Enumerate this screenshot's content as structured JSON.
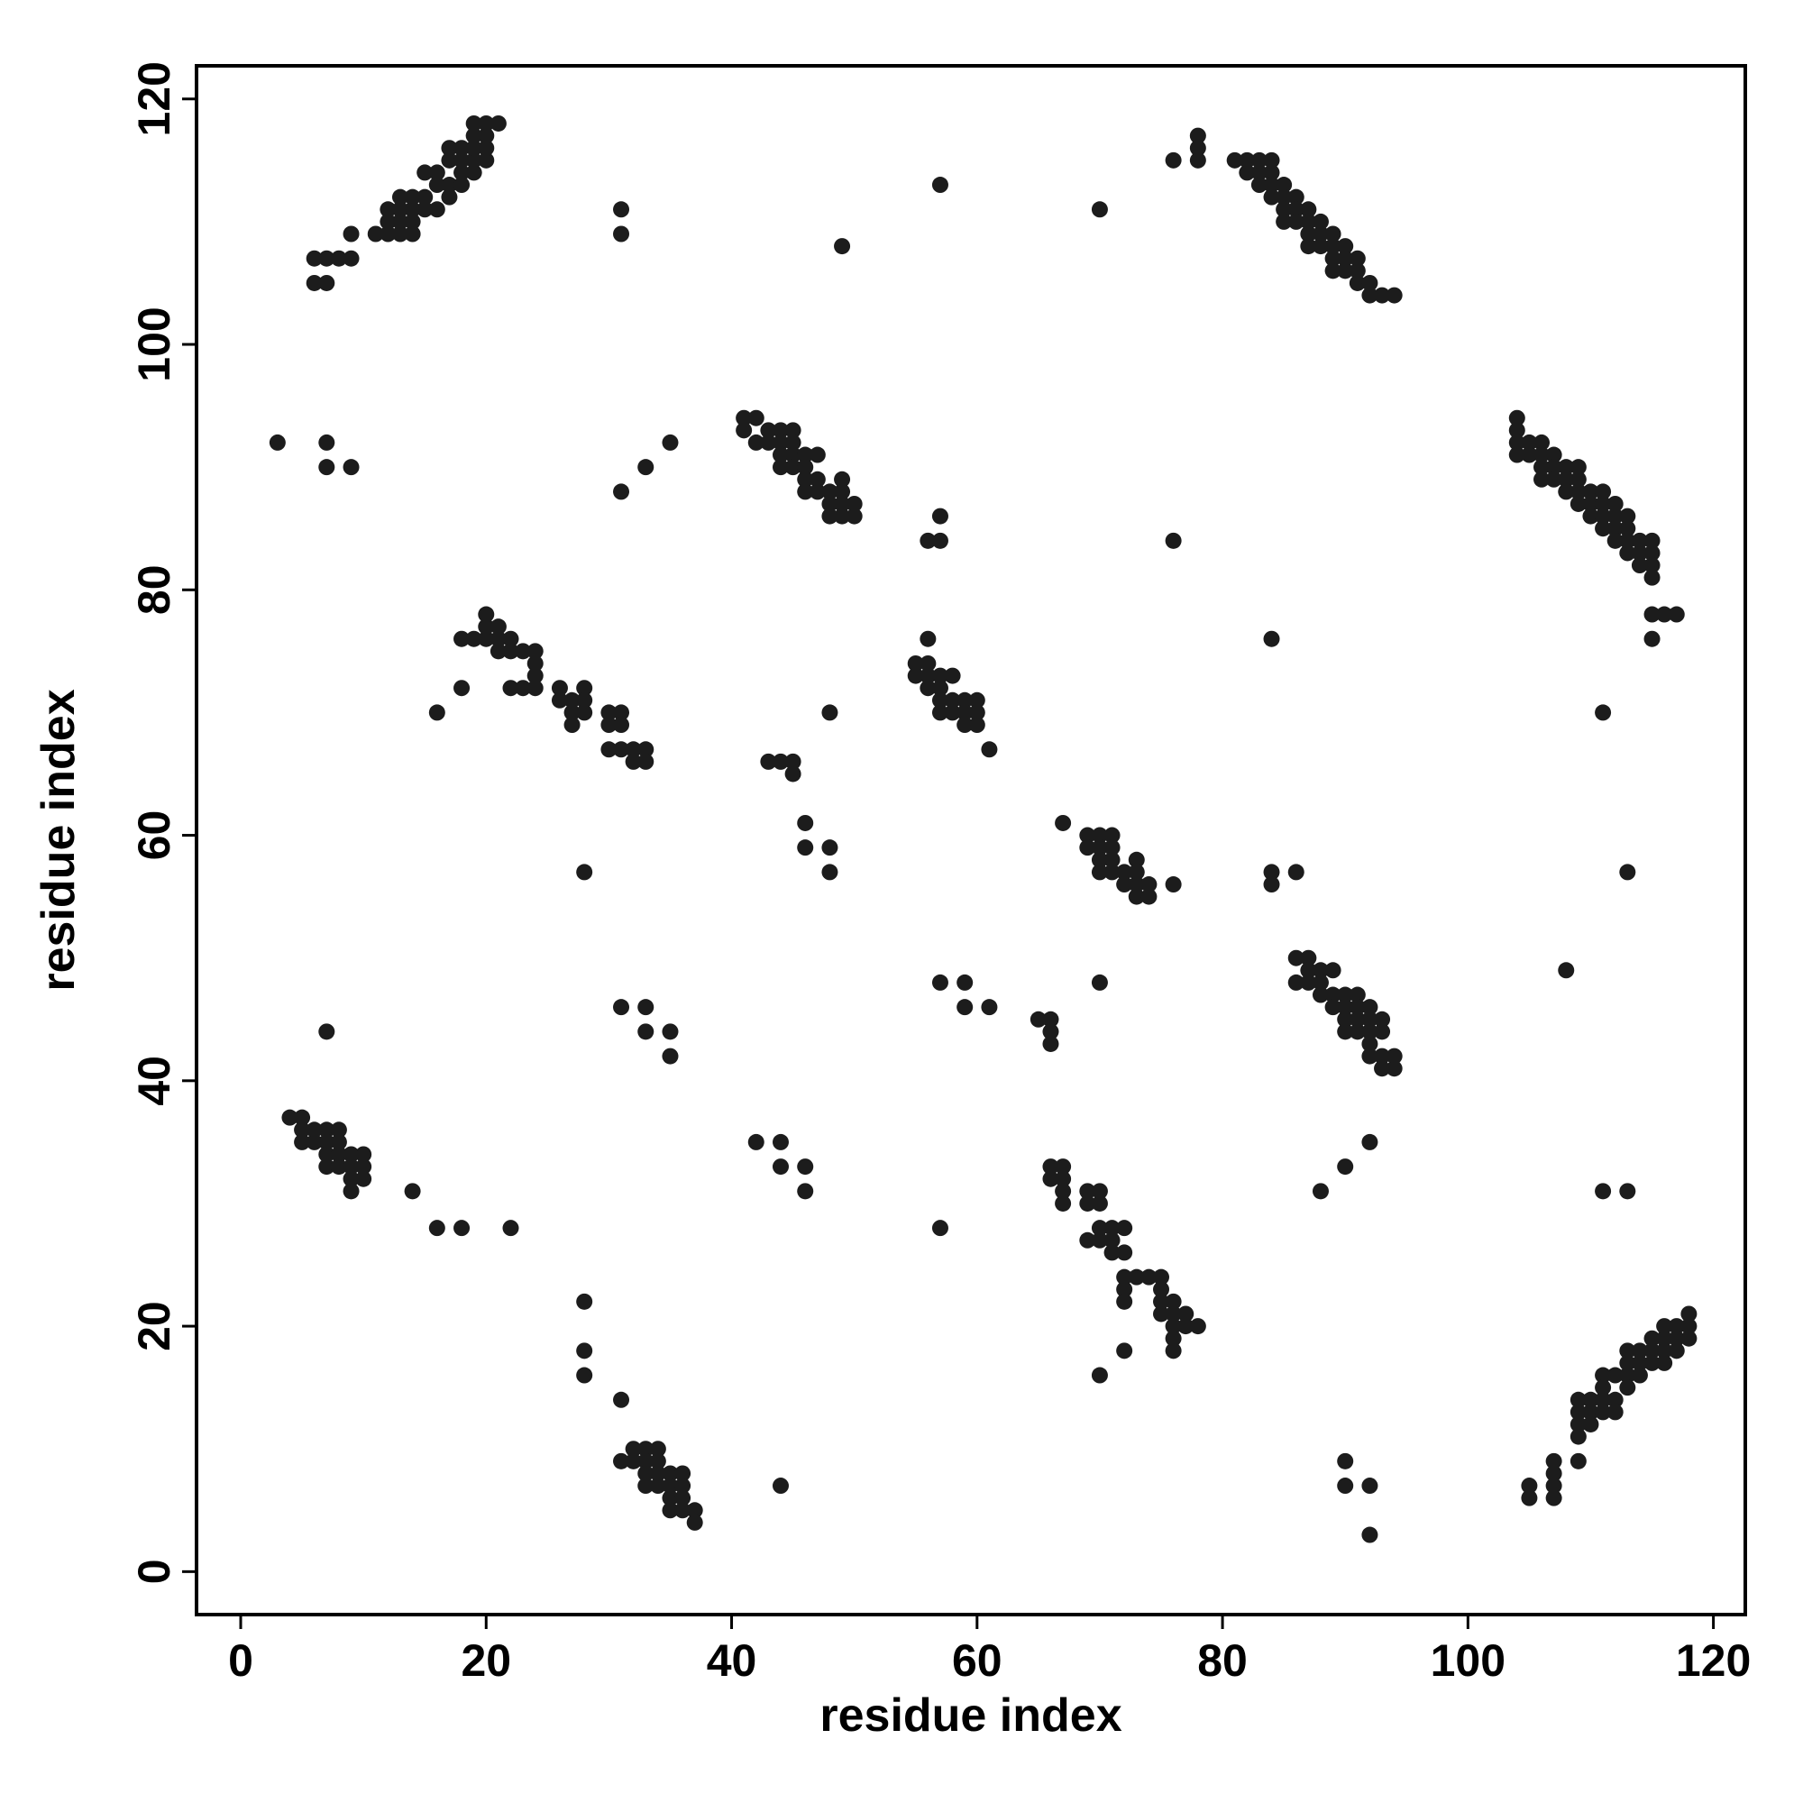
{
  "chart_data": {
    "type": "scatter",
    "xlabel": "residue index",
    "ylabel": "residue index",
    "xlim": [
      -3.6,
      122.6
    ],
    "ylim": [
      -3.5,
      122.7
    ],
    "xticks": [
      0,
      20,
      40,
      60,
      80,
      100,
      120
    ],
    "yticks": [
      0,
      20,
      40,
      60,
      80,
      100,
      120
    ],
    "series": [
      {
        "color": "#1c1c1c",
        "x": [
          6,
          7,
          6,
          7,
          8,
          9,
          9,
          11,
          12,
          13,
          14,
          12,
          13,
          13,
          14,
          13,
          14,
          15,
          15,
          16,
          15,
          16,
          16,
          17,
          17,
          18,
          18,
          17,
          18,
          19,
          19,
          19,
          19,
          20,
          20,
          20,
          19,
          20,
          21,
          17,
          18,
          14,
          12,
          31,
          31,
          57,
          49,
          70,
          76,
          78,
          78,
          78,
          81,
          82,
          83,
          84,
          82,
          83,
          84,
          83,
          84,
          85,
          84,
          85,
          86,
          85,
          86,
          87,
          85,
          86,
          87,
          88,
          87,
          88,
          89,
          87,
          88,
          89,
          90,
          89,
          90,
          91,
          89,
          90,
          91,
          91,
          92,
          92,
          93,
          94,
          3,
          7,
          7,
          9,
          31,
          33,
          35,
          41,
          42,
          41,
          42,
          43,
          43,
          44,
          44,
          45,
          45,
          44,
          44,
          45,
          45,
          46,
          46,
          47,
          46,
          47,
          46,
          47,
          48,
          48,
          49,
          49,
          49,
          48,
          49,
          50,
          50,
          56,
          57,
          57,
          76,
          104,
          104,
          104,
          104,
          105,
          105,
          106,
          106,
          106,
          107,
          107,
          106,
          107,
          108,
          108,
          108,
          109,
          109,
          109,
          109,
          110,
          110,
          110,
          111,
          111,
          111,
          111,
          112,
          112,
          112,
          112,
          113,
          113,
          113,
          113,
          114,
          114,
          114,
          115,
          115,
          115,
          115,
          115,
          116,
          117,
          115,
          18,
          19,
          20,
          20,
          20,
          21,
          21,
          21,
          22,
          22,
          23,
          24,
          24,
          24,
          22,
          23,
          24,
          18,
          16,
          26,
          26,
          27,
          27,
          28,
          28,
          28,
          27,
          30,
          30,
          31,
          31,
          30,
          31,
          32,
          32,
          33,
          33,
          56,
          55,
          55,
          56,
          56,
          56,
          57,
          57,
          57,
          58,
          57,
          58,
          58,
          59,
          59,
          59,
          60,
          60,
          60,
          61,
          43,
          44,
          45,
          45,
          48,
          46,
          46,
          48,
          48,
          28,
          84,
          111,
          67,
          69,
          70,
          71,
          69,
          70,
          71,
          70,
          71,
          70,
          71,
          72,
          72,
          73,
          73,
          73,
          73,
          74,
          74,
          76,
          84,
          84,
          86,
          113,
          108,
          86,
          87,
          86,
          87,
          87,
          88,
          89,
          88,
          88,
          89,
          89,
          90,
          90,
          90,
          91,
          91,
          90,
          91,
          91,
          92,
          92,
          92,
          92,
          93,
          93,
          92,
          93,
          94,
          93,
          94,
          57,
          59,
          59,
          61,
          70,
          65,
          66,
          66,
          66,
          31,
          33,
          33,
          35,
          35,
          7,
          4,
          5,
          5,
          5,
          6,
          6,
          7,
          7,
          7,
          7,
          8,
          8,
          8,
          8,
          9,
          9,
          9,
          9,
          10,
          10,
          10,
          14,
          16,
          18,
          22,
          42,
          44,
          44,
          46,
          46,
          57,
          66,
          67,
          66,
          67,
          67,
          67,
          69,
          70,
          69,
          70,
          69,
          70,
          70,
          71,
          72,
          71,
          71,
          72,
          72,
          73,
          74,
          75,
          72,
          72,
          75,
          75,
          75,
          76,
          76,
          76,
          77,
          77,
          78,
          76,
          76,
          72,
          70,
          88,
          90,
          92,
          111,
          113,
          105,
          105,
          107,
          107,
          107,
          107,
          109,
          109,
          109,
          109,
          109,
          110,
          110,
          110,
          111,
          111,
          111,
          111,
          112,
          112,
          112,
          113,
          113,
          113,
          113,
          114,
          114,
          114,
          115,
          115,
          115,
          116,
          116,
          116,
          116,
          117,
          117,
          117,
          118,
          118,
          118,
          90,
          90,
          92,
          92,
          44,
          28,
          28,
          28,
          31,
          31,
          32,
          32,
          33,
          33,
          33,
          33,
          34,
          34,
          34,
          34,
          35,
          35,
          35,
          35,
          36,
          36,
          36,
          36,
          37,
          37
        ],
        "values": [
          105,
          105,
          107,
          107,
          107,
          107,
          109,
          109,
          109,
          109,
          109,
          110,
          110,
          111,
          111,
          112,
          112,
          111,
          112,
          111,
          114,
          113,
          114,
          113,
          115,
          114,
          115,
          116,
          116,
          114,
          115,
          116,
          117,
          115,
          116,
          117,
          118,
          118,
          118,
          112,
          113,
          110,
          111,
          111,
          109,
          113,
          108,
          111,
          115,
          115,
          116,
          117,
          115,
          115,
          115,
          115,
          114,
          114,
          114,
          113,
          113,
          113,
          112,
          112,
          112,
          111,
          111,
          111,
          110,
          110,
          110,
          110,
          109,
          109,
          109,
          108,
          108,
          108,
          108,
          107,
          107,
          107,
          106,
          106,
          106,
          105,
          105,
          104,
          104,
          104,
          92,
          92,
          90,
          90,
          88,
          90,
          92,
          94,
          94,
          93,
          92,
          93,
          92,
          93,
          92,
          93,
          92,
          91,
          90,
          91,
          90,
          91,
          90,
          91,
          89,
          89,
          88,
          88,
          88,
          87,
          89,
          88,
          87,
          86,
          86,
          86,
          87,
          84,
          84,
          86,
          84,
          94,
          93,
          92,
          91,
          92,
          91,
          92,
          91,
          90,
          91,
          90,
          89,
          89,
          90,
          89,
          88,
          90,
          89,
          88,
          87,
          88,
          87,
          86,
          88,
          87,
          86,
          85,
          87,
          86,
          85,
          84,
          86,
          85,
          84,
          83,
          84,
          83,
          82,
          84,
          83,
          82,
          81,
          78,
          78,
          78,
          76,
          76,
          76,
          76,
          77,
          78,
          76,
          77,
          75,
          76,
          75,
          75,
          75,
          74,
          73,
          72,
          72,
          72,
          72,
          70,
          72,
          71,
          71,
          70,
          72,
          71,
          70,
          69,
          70,
          69,
          70,
          69,
          67,
          67,
          67,
          66,
          67,
          66,
          76,
          74,
          73,
          74,
          73,
          72,
          73,
          72,
          71,
          73,
          70,
          71,
          70,
          71,
          70,
          69,
          71,
          70,
          69,
          67,
          66,
          66,
          66,
          65,
          70,
          61,
          59,
          59,
          57,
          57,
          76,
          70,
          61,
          60,
          60,
          60,
          59,
          59,
          59,
          58,
          58,
          57,
          57,
          57,
          56,
          58,
          57,
          56,
          55,
          56,
          55,
          56,
          57,
          56,
          57,
          57,
          49,
          50,
          50,
          48,
          48,
          49,
          49,
          49,
          48,
          47,
          47,
          46,
          47,
          46,
          45,
          47,
          46,
          44,
          44,
          45,
          46,
          45,
          44,
          43,
          45,
          44,
          42,
          42,
          42,
          41,
          41,
          48,
          48,
          46,
          46,
          48,
          45,
          45,
          44,
          43,
          46,
          46,
          44,
          44,
          42,
          44,
          37,
          37,
          36,
          35,
          36,
          35,
          36,
          35,
          34,
          33,
          36,
          35,
          34,
          33,
          34,
          33,
          32,
          31,
          34,
          33,
          32,
          31,
          28,
          28,
          28,
          35,
          35,
          33,
          33,
          31,
          28,
          33,
          33,
          32,
          32,
          31,
          30,
          31,
          31,
          30,
          30,
          27,
          27,
          28,
          28,
          28,
          27,
          26,
          26,
          24,
          24,
          24,
          24,
          23,
          22,
          23,
          22,
          21,
          22,
          21,
          20,
          21,
          20,
          20,
          19,
          18,
          18,
          16,
          31,
          33,
          35,
          31,
          31,
          7,
          6,
          9,
          8,
          7,
          6,
          9,
          14,
          13,
          12,
          11,
          14,
          13,
          12,
          16,
          15,
          14,
          13,
          16,
          14,
          13,
          18,
          17,
          16,
          15,
          18,
          17,
          16,
          19,
          18,
          17,
          20,
          19,
          18,
          17,
          20,
          19,
          18,
          21,
          20,
          19,
          9,
          7,
          7,
          3,
          7,
          22,
          18,
          16,
          14,
          9,
          10,
          9,
          10,
          9,
          8,
          7,
          10,
          9,
          8,
          7,
          8,
          7,
          6,
          5,
          8,
          7,
          6,
          5,
          5,
          4
        ]
      }
    ]
  }
}
